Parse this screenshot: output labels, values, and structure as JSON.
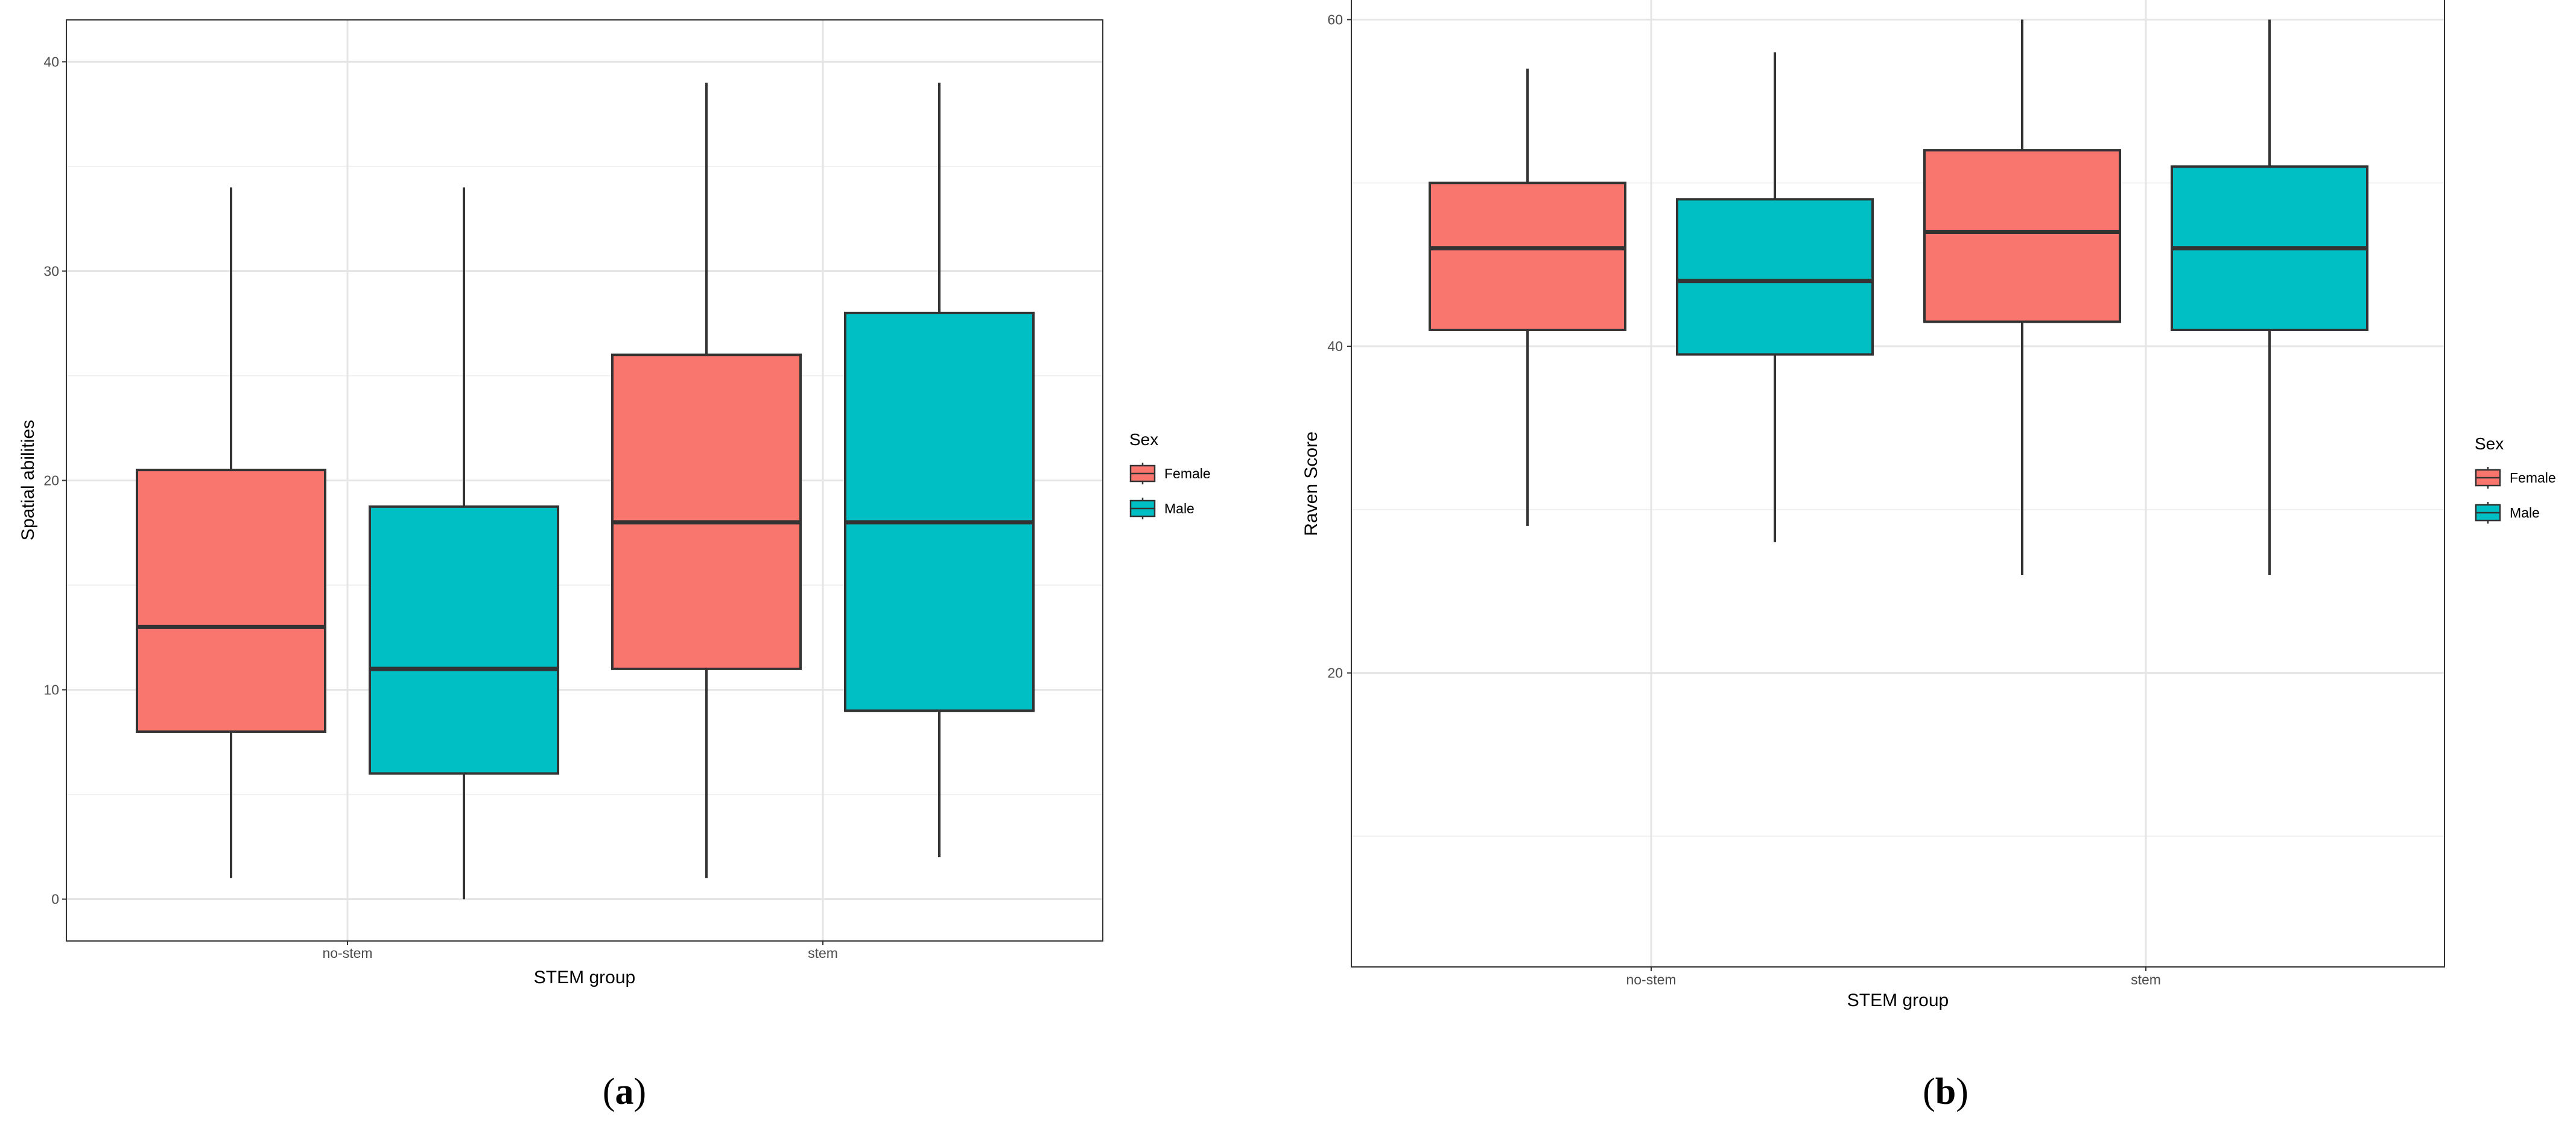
{
  "chart_data": [
    {
      "type": "boxplot",
      "panel_label": "a",
      "xlabel": "STEM group",
      "ylabel": "Spatial abilities",
      "ylim": [
        -2,
        42
      ],
      "yticks": [
        0,
        10,
        20,
        30,
        40
      ],
      "categories": [
        "no-stem",
        "stem"
      ],
      "legend_title": "Sex",
      "series": [
        {
          "name": "Female",
          "color": "#F8766D",
          "boxes": [
            {
              "category": "no-stem",
              "min": 1,
              "q1": 8,
              "median": 13,
              "q3": 20.5,
              "max": 34
            },
            {
              "category": "stem",
              "min": 1,
              "q1": 11,
              "median": 18,
              "q3": 26,
              "max": 39
            }
          ]
        },
        {
          "name": "Male",
          "color": "#00BFC4",
          "boxes": [
            {
              "category": "no-stem",
              "min": 0,
              "q1": 6,
              "median": 11,
              "q3": 18.75,
              "max": 34
            },
            {
              "category": "stem",
              "min": 2,
              "q1": 9,
              "median": 18,
              "q3": 28,
              "max": 39
            }
          ]
        }
      ]
    },
    {
      "type": "boxplot",
      "panel_label": "b",
      "xlabel": "STEM group",
      "ylabel": "Raven Score",
      "ylim": [
        2,
        61.2
      ],
      "yticks": [
        20,
        40,
        60
      ],
      "categories": [
        "no-stem",
        "stem"
      ],
      "legend_title": "Sex",
      "series": [
        {
          "name": "Female",
          "color": "#F8766D",
          "boxes": [
            {
              "category": "no-stem",
              "min": 29,
              "q1": 41,
              "median": 46,
              "q3": 50,
              "max": 57
            },
            {
              "category": "stem",
              "min": 26,
              "q1": 41.5,
              "median": 47,
              "q3": 52,
              "max": 60
            }
          ]
        },
        {
          "name": "Male",
          "color": "#00BFC4",
          "boxes": [
            {
              "category": "no-stem",
              "min": 28,
              "q1": 39.5,
              "median": 44,
              "q3": 49,
              "max": 58
            },
            {
              "category": "stem",
              "min": 26,
              "q1": 41,
              "median": 46,
              "q3": 51,
              "max": 60
            }
          ]
        }
      ]
    }
  ]
}
